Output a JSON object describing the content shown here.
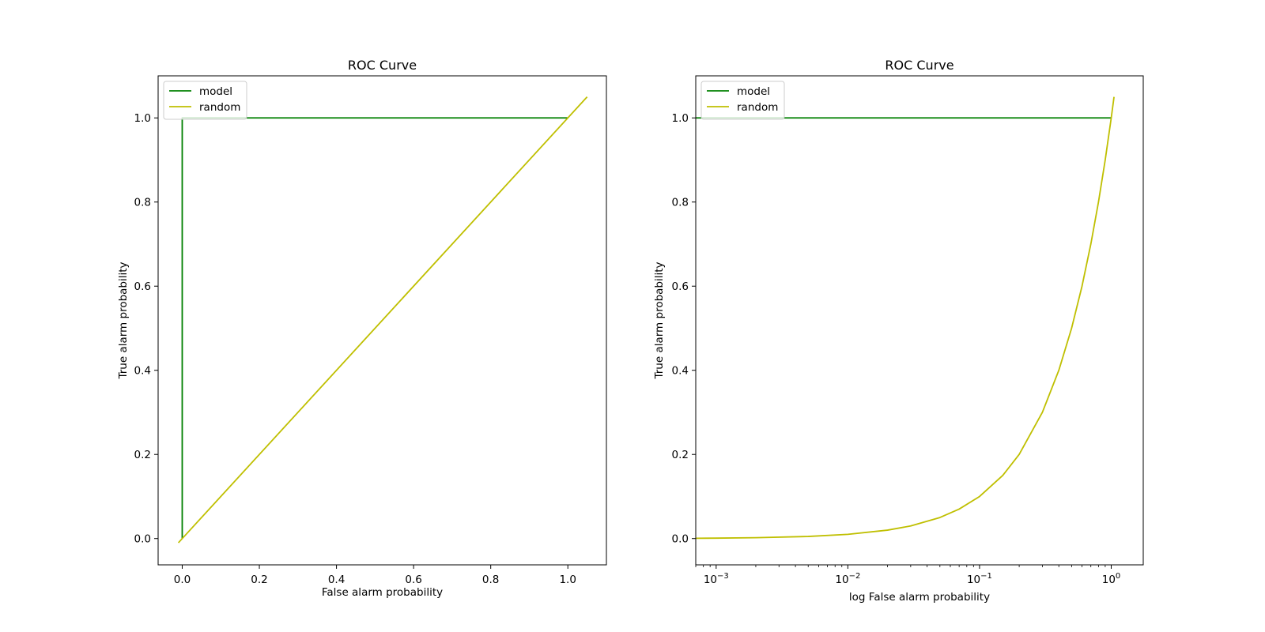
{
  "chart_data": [
    {
      "type": "line",
      "title": "ROC Curve",
      "xlabel": "False alarm probability",
      "ylabel": "True alarm probability",
      "xscale": "linear",
      "yscale": "linear",
      "xlim": [
        -0.0625,
        1.1
      ],
      "ylim": [
        -0.0625,
        1.1
      ],
      "xticks": [
        0.0,
        0.2,
        0.4,
        0.6,
        0.8,
        1.0
      ],
      "xtick_labels": [
        "0.0",
        "0.2",
        "0.4",
        "0.6",
        "0.8",
        "1.0"
      ],
      "yticks": [
        0.0,
        0.2,
        0.4,
        0.6,
        0.8,
        1.0
      ],
      "ytick_labels": [
        "0.0",
        "0.2",
        "0.4",
        "0.6",
        "0.8",
        "1.0"
      ],
      "legend_position": "top-left",
      "grid": false,
      "series": [
        {
          "name": "model",
          "color": "#008000",
          "x": [
            0.0,
            0.0,
            1.0
          ],
          "y": [
            0.0,
            1.0,
            1.0
          ]
        },
        {
          "name": "random",
          "color": "#bfbf00",
          "x": [
            -0.01,
            1.05
          ],
          "y": [
            -0.01,
            1.05
          ]
        }
      ]
    },
    {
      "type": "line",
      "title": "ROC Curve",
      "xlabel": "log False alarm probability",
      "ylabel": "True alarm probability",
      "xscale": "log",
      "yscale": "linear",
      "xlim": [
        0.0007,
        1.75
      ],
      "ylim": [
        -0.0625,
        1.1
      ],
      "xticks": [
        0.001,
        0.01,
        0.1,
        1.0
      ],
      "xtick_labels": [
        {
          "base": "10",
          "exp": "−3"
        },
        {
          "base": "10",
          "exp": "−2"
        },
        {
          "base": "10",
          "exp": "−1"
        },
        {
          "base": "10",
          "exp": "0"
        }
      ],
      "yticks": [
        0.0,
        0.2,
        0.4,
        0.6,
        0.8,
        1.0
      ],
      "ytick_labels": [
        "0.0",
        "0.2",
        "0.4",
        "0.6",
        "0.8",
        "1.0"
      ],
      "legend_position": "top-left",
      "grid": false,
      "series": [
        {
          "name": "model",
          "color": "#008000",
          "x": [
            0.0007,
            1.0
          ],
          "y": [
            1.0,
            1.0
          ]
        },
        {
          "name": "random",
          "color": "#bfbf00",
          "x": [
            0.0007,
            0.001,
            0.002,
            0.005,
            0.01,
            0.02,
            0.03,
            0.05,
            0.07,
            0.1,
            0.15,
            0.2,
            0.3,
            0.4,
            0.5,
            0.6,
            0.7,
            0.8,
            0.9,
            1.0,
            1.05
          ],
          "y": [
            0.0007,
            0.001,
            0.002,
            0.005,
            0.01,
            0.02,
            0.03,
            0.05,
            0.07,
            0.1,
            0.15,
            0.2,
            0.3,
            0.4,
            0.5,
            0.6,
            0.7,
            0.8,
            0.9,
            1.0,
            1.05
          ]
        }
      ]
    }
  ]
}
